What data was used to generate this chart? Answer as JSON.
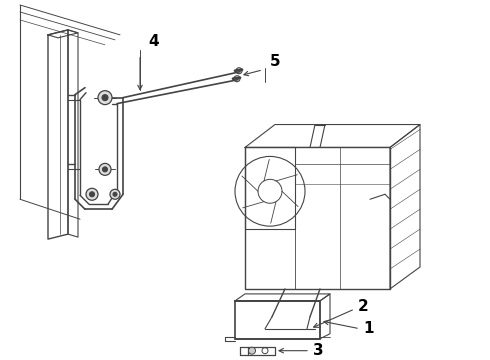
{
  "background_color": "#ffffff",
  "line_color": "#444444",
  "label_color": "#000000",
  "fig_width": 4.9,
  "fig_height": 3.6,
  "dpi": 100,
  "label_fontsize": 10,
  "label_fontweight": "bold"
}
